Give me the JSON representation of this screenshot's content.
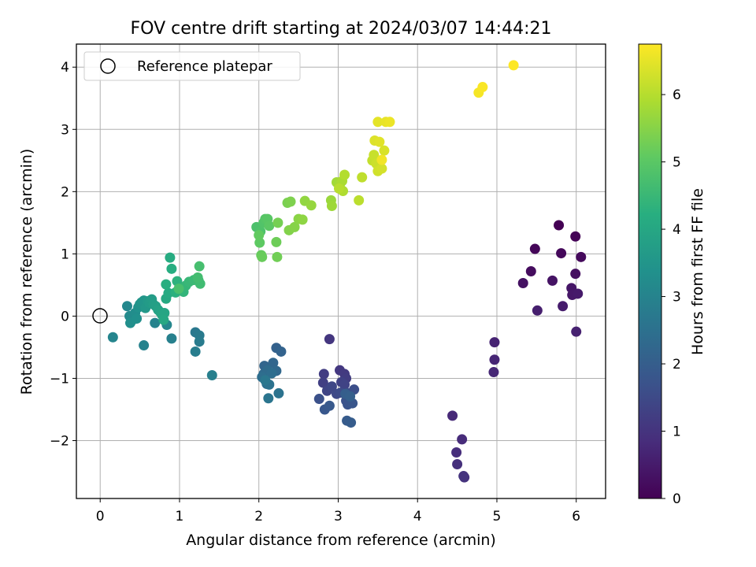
{
  "chart_data": {
    "type": "scatter",
    "title": "FOV centre drift starting at 2024/03/07 14:44:21",
    "xlabel": "Angular distance from reference (arcmin)",
    "ylabel": "Rotation from reference (arcmin)",
    "xlim": [
      -0.3,
      6.37
    ],
    "ylim": [
      -2.93,
      4.37
    ],
    "xticks": [
      0,
      1,
      2,
      3,
      4,
      5,
      6
    ],
    "yticks": [
      -2,
      -1,
      0,
      1,
      2,
      3,
      4
    ],
    "grid": true,
    "legend": {
      "position": "top-left",
      "entries": [
        "Reference platepar"
      ]
    },
    "reference_point": {
      "x": 0,
      "y": 0
    },
    "colorbar": {
      "label": "Hours from first FF file",
      "range": [
        0,
        6.75
      ],
      "ticks": [
        0,
        1,
        2,
        3,
        4,
        5,
        6
      ],
      "colormap": "viridis"
    },
    "series": [
      {
        "points": [
          [
            5.78,
            1.46
          ],
          [
            5.99,
            1.28
          ],
          [
            5.48,
            1.08
          ],
          [
            5.81,
            1.01
          ],
          [
            6.06,
            0.95
          ],
          [
            5.43,
            0.72
          ],
          [
            5.99,
            0.68
          ],
          [
            5.33,
            0.53
          ],
          [
            5.7,
            0.57
          ],
          [
            5.94,
            0.45
          ],
          [
            5.95,
            0.34
          ],
          [
            6.02,
            0.36
          ],
          [
            5.83,
            0.16
          ],
          [
            5.51,
            0.09
          ],
          [
            6.0,
            -0.25
          ],
          [
            4.97,
            -0.42
          ],
          [
            4.97,
            -0.7
          ],
          [
            4.96,
            -0.9
          ],
          [
            4.44,
            -1.6
          ],
          [
            4.56,
            -1.98
          ],
          [
            4.49,
            -2.19
          ],
          [
            4.5,
            -2.38
          ],
          [
            4.59,
            -2.59
          ],
          [
            4.58,
            -2.57
          ],
          [
            2.89,
            -0.37
          ],
          [
            3.02,
            -0.87
          ],
          [
            3.08,
            -0.93
          ],
          [
            3.1,
            -1.0
          ],
          [
            2.82,
            -0.93
          ],
          [
            2.81,
            -1.07
          ],
          [
            3.04,
            -1.06
          ],
          [
            3.08,
            -1.1
          ],
          [
            2.86,
            -1.2
          ],
          [
            2.92,
            -1.13
          ],
          [
            2.98,
            -1.25
          ],
          [
            3.03,
            -1.23
          ],
          [
            3.12,
            -1.24
          ],
          [
            3.2,
            -1.18
          ],
          [
            2.76,
            -1.33
          ],
          [
            3.1,
            -1.36
          ],
          [
            3.12,
            -1.42
          ],
          [
            3.18,
            -1.4
          ],
          [
            2.83,
            -1.5
          ],
          [
            2.89,
            -1.44
          ],
          [
            3.11,
            -1.68
          ],
          [
            3.16,
            -1.71
          ],
          [
            3.09,
            -1.25
          ],
          [
            3.15,
            -1.29
          ],
          [
            2.22,
            -0.51
          ],
          [
            2.28,
            -0.57
          ],
          [
            2.07,
            -0.8
          ],
          [
            2.18,
            -0.75
          ],
          [
            2.22,
            -0.88
          ],
          [
            2.06,
            -0.93
          ],
          [
            2.11,
            -0.87
          ],
          [
            2.16,
            -0.92
          ],
          [
            2.04,
            -0.98
          ],
          [
            2.1,
            -1.09
          ],
          [
            2.13,
            -1.1
          ],
          [
            2.25,
            -1.24
          ],
          [
            2.12,
            -1.32
          ],
          [
            2.08,
            -1.03
          ],
          [
            1.2,
            -0.26
          ],
          [
            1.25,
            -0.31
          ],
          [
            1.25,
            -0.41
          ],
          [
            1.2,
            -0.57
          ],
          [
            1.41,
            -0.95
          ],
          [
            0.9,
            -0.36
          ],
          [
            0.55,
            -0.47
          ],
          [
            0.69,
            -0.11
          ],
          [
            0.16,
            -0.34
          ],
          [
            0.84,
            -0.14
          ],
          [
            0.34,
            0.16
          ],
          [
            0.37,
            0.0
          ],
          [
            0.4,
            -0.07
          ],
          [
            0.44,
            0.05
          ],
          [
            0.38,
            -0.11
          ],
          [
            0.46,
            -0.04
          ],
          [
            0.48,
            0.14
          ],
          [
            0.5,
            0.19
          ],
          [
            0.52,
            0.22
          ],
          [
            0.55,
            0.25
          ],
          [
            0.57,
            0.13
          ],
          [
            0.6,
            0.24
          ],
          [
            0.62,
            0.21
          ],
          [
            0.65,
            0.27
          ],
          [
            0.67,
            0.19
          ],
          [
            0.7,
            0.16
          ],
          [
            0.73,
            0.1
          ],
          [
            0.76,
            0.06
          ],
          [
            0.78,
            0.02
          ],
          [
            0.81,
            0.05
          ],
          [
            0.8,
            -0.06
          ],
          [
            0.83,
            0.28
          ],
          [
            0.86,
            0.37
          ],
          [
            0.88,
            0.94
          ],
          [
            0.9,
            0.76
          ],
          [
            0.83,
            0.51
          ],
          [
            0.95,
            0.38
          ],
          [
            0.97,
            0.56
          ],
          [
            1.02,
            0.42
          ],
          [
            1.05,
            0.39
          ],
          [
            1.08,
            0.49
          ],
          [
            1.12,
            0.55
          ],
          [
            1.18,
            0.58
          ],
          [
            1.24,
            0.57
          ],
          [
            1.26,
            0.52
          ],
          [
            1.23,
            0.62
          ],
          [
            1.25,
            0.8
          ],
          [
            0.99,
            0.44
          ],
          [
            1.97,
            1.43
          ],
          [
            2.02,
            1.36
          ],
          [
            2.06,
            1.5
          ],
          [
            2.08,
            1.56
          ],
          [
            2.11,
            1.56
          ],
          [
            2.13,
            1.45
          ],
          [
            2.01,
            1.18
          ],
          [
            2.0,
            1.3
          ],
          [
            2.03,
            0.98
          ],
          [
            2.04,
            0.95
          ],
          [
            2.22,
            1.19
          ],
          [
            2.23,
            0.95
          ],
          [
            2.24,
            1.5
          ],
          [
            2.36,
            1.82
          ],
          [
            2.4,
            1.84
          ],
          [
            2.38,
            1.38
          ],
          [
            2.45,
            1.43
          ],
          [
            2.5,
            1.56
          ],
          [
            2.55,
            1.55
          ],
          [
            2.58,
            1.85
          ],
          [
            2.66,
            1.78
          ],
          [
            2.91,
            1.86
          ],
          [
            2.92,
            1.77
          ],
          [
            2.98,
            2.15
          ],
          [
            3.02,
            2.11
          ],
          [
            3.05,
            2.17
          ],
          [
            3.06,
            2.01
          ],
          [
            3.08,
            2.27
          ],
          [
            3.01,
            2.05
          ],
          [
            3.26,
            1.86
          ],
          [
            3.3,
            2.23
          ],
          [
            3.43,
            2.5
          ],
          [
            3.45,
            2.59
          ],
          [
            3.48,
            2.45
          ],
          [
            3.5,
            2.33
          ],
          [
            3.55,
            2.37
          ],
          [
            3.58,
            2.66
          ],
          [
            3.46,
            2.82
          ],
          [
            3.52,
            2.8
          ],
          [
            3.5,
            3.12
          ],
          [
            3.6,
            3.12
          ],
          [
            3.65,
            3.12
          ],
          [
            3.55,
            2.51
          ],
          [
            4.77,
            3.59
          ],
          [
            4.82,
            3.68
          ],
          [
            5.21,
            4.03
          ]
        ]
      }
    ]
  }
}
